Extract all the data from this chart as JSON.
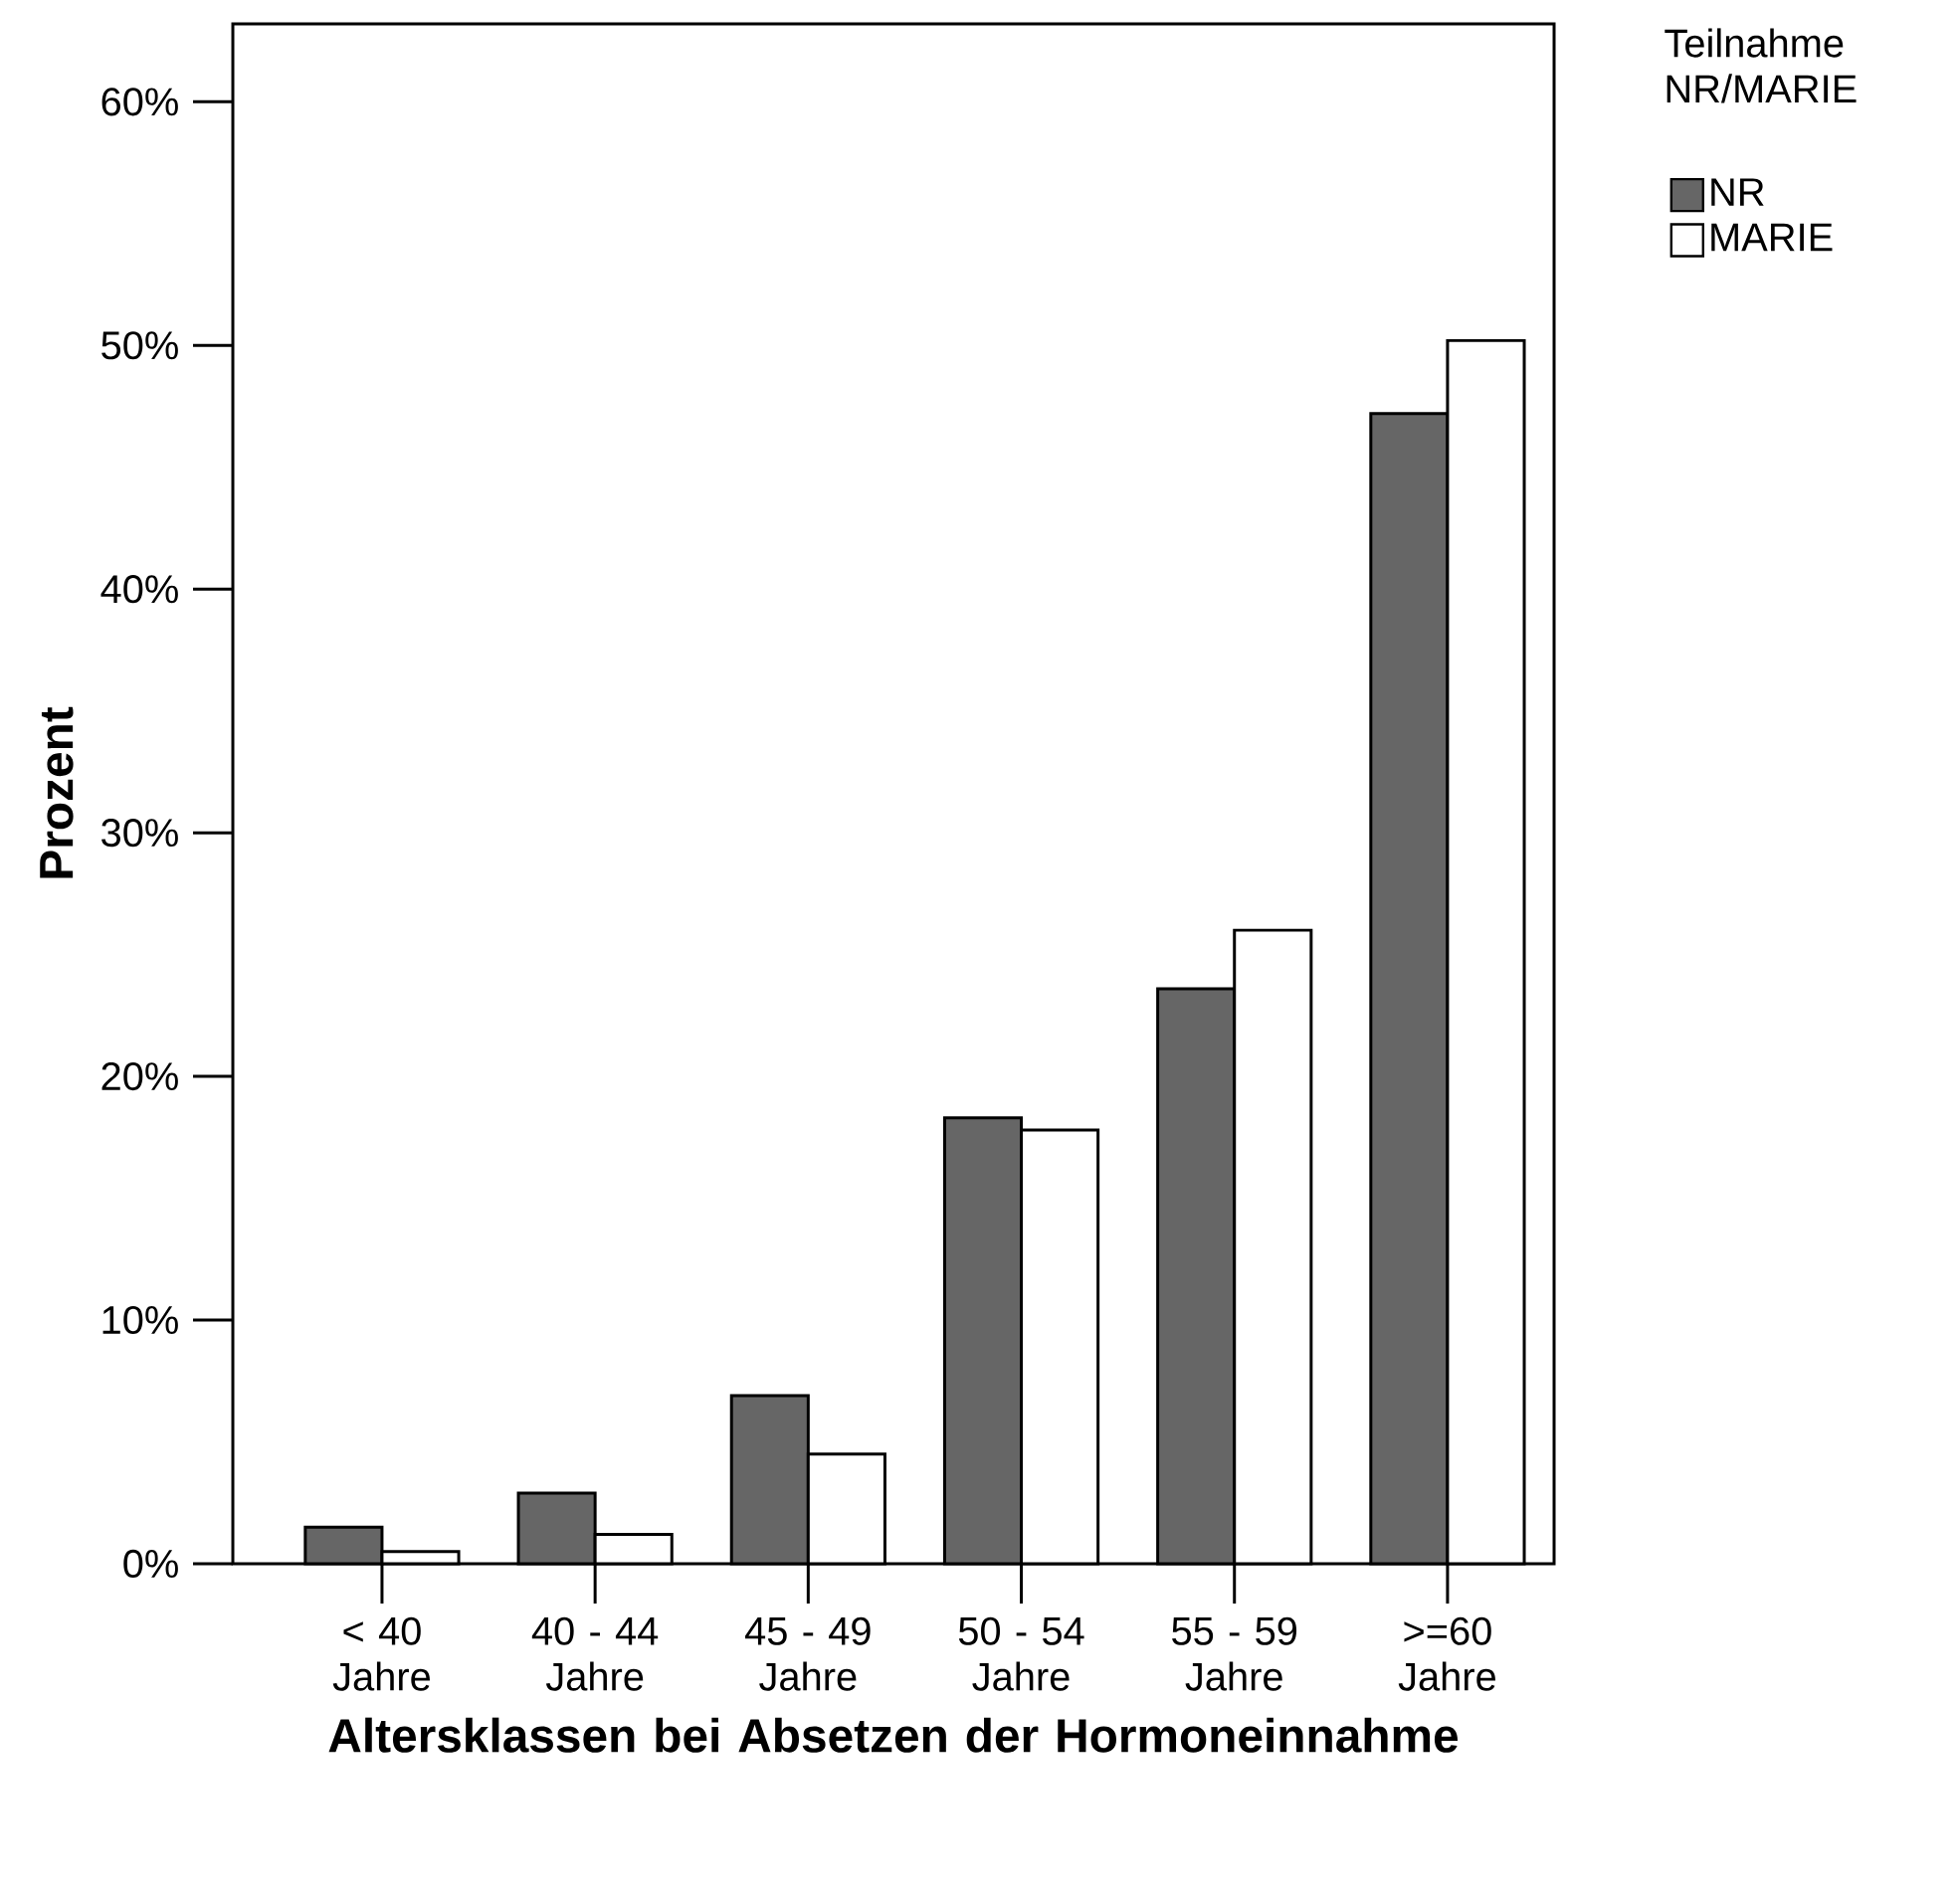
{
  "chart_data": {
    "type": "bar",
    "xlabel": "Altersklassen bei Absetzen der Hormoneinnahme",
    "ylabel": "Prozent",
    "legend_title": "Teilnahme NR/MARIE",
    "categories": [
      "< 40 Jahre",
      "40 - 44 Jahre",
      "45 - 49 Jahre",
      "50 - 54 Jahre",
      "55 - 59 Jahre",
      ">=60 Jahre"
    ],
    "series": [
      {
        "name": "NR",
        "color": "#666666",
        "values": [
          1.5,
          2.9,
          6.9,
          18.3,
          23.6,
          47.2
        ]
      },
      {
        "name": "MARIE",
        "color": "#ffffff",
        "values": [
          0.5,
          1.2,
          4.5,
          17.8,
          26.0,
          50.2
        ]
      }
    ],
    "ylim": [
      0,
      63.2
    ],
    "yticks": [
      {
        "value": 0,
        "label": "0%"
      },
      {
        "value": 10,
        "label": "10%"
      },
      {
        "value": 20,
        "label": "20%"
      },
      {
        "value": 30,
        "label": "30%"
      },
      {
        "value": 40,
        "label": "40%"
      },
      {
        "value": 50,
        "label": "50%"
      },
      {
        "value": 60,
        "label": "60%"
      }
    ],
    "legend": "top right"
  }
}
